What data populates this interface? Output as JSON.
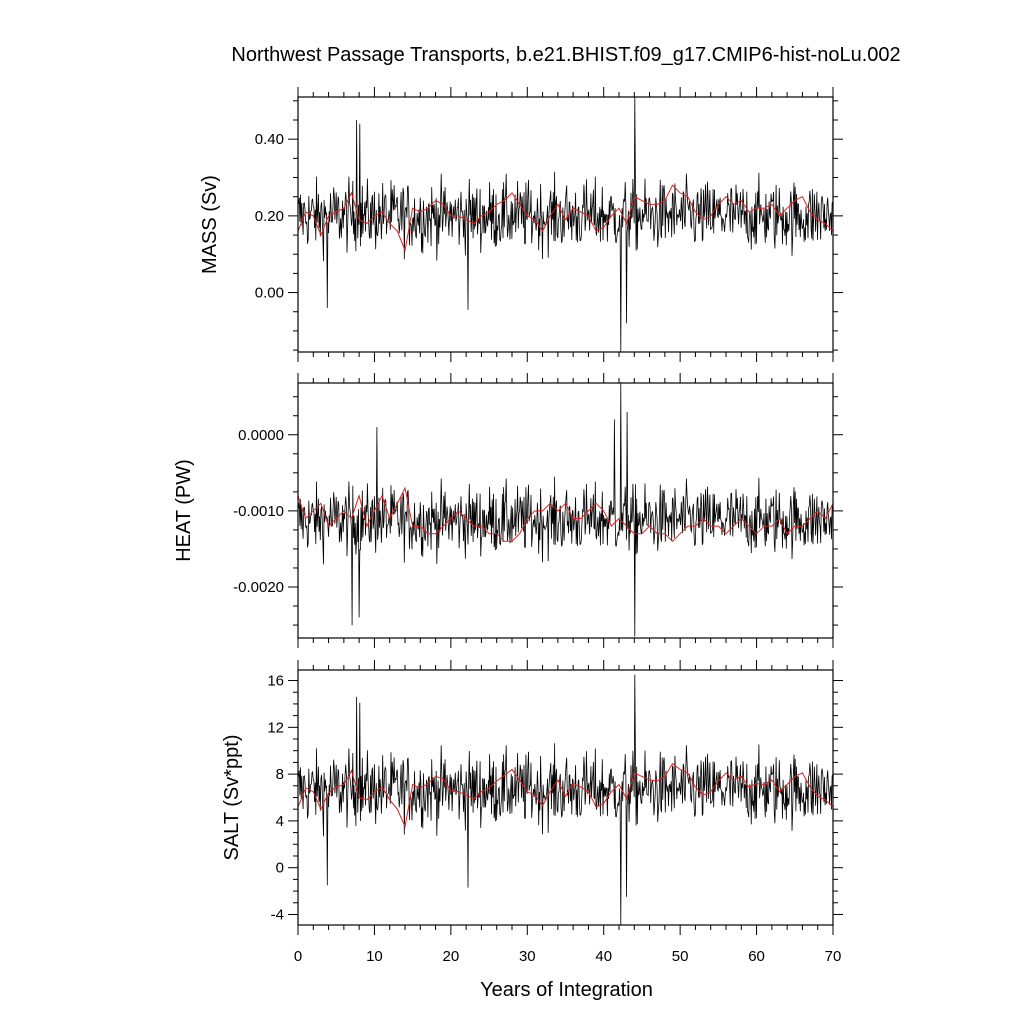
{
  "chart_data": {
    "type": "line",
    "title": "Northwest Passage Transports, b.e21.BHIST.f09_g17.CMIP6-hist-noLu.002",
    "xlabel": "Years of Integration",
    "xlim": [
      0,
      70
    ],
    "x_ticks": [
      0,
      10,
      20,
      30,
      40,
      50,
      60,
      70
    ],
    "x_tick_labels": [
      "0",
      "10",
      "20",
      "30",
      "40",
      "50",
      "60",
      "70"
    ],
    "x_step": 0.0833,
    "line_colors": {
      "monthly": "#000000",
      "annual": "#e02020"
    },
    "panels": [
      {
        "ylabel": "MASS (Sv)",
        "ylim": [
          -0.155,
          0.51
        ],
        "y_ticks": [
          0.0,
          0.2,
          0.4
        ],
        "y_tick_labels": [
          "0.00",
          "0.20",
          "0.40"
        ],
        "y_minor_step": 0.05,
        "series": [
          {
            "kind": "monthly",
            "mean": 0.2,
            "amp": 0.085,
            "spikes": [
              {
                "x": 7.7,
                "y": 0.45
              },
              {
                "x": 8.1,
                "y": 0.44
              },
              {
                "x": 44.1,
                "y": 0.51
              },
              {
                "x": 42.2,
                "y": -0.155
              },
              {
                "x": 43.0,
                "y": -0.08
              },
              {
                "x": 3.8,
                "y": -0.04
              },
              {
                "x": 22.2,
                "y": -0.045
              }
            ]
          },
          {
            "kind": "annual",
            "values": [
              0.16,
              0.21,
              0.2,
              0.15,
              0.2,
              0.21,
              0.22,
              0.26,
              0.19,
              0.18,
              0.2,
              0.21,
              0.18,
              0.16,
              0.11,
              0.22,
              0.21,
              0.22,
              0.24,
              0.23,
              0.2,
              0.2,
              0.19,
              0.18,
              0.2,
              0.21,
              0.23,
              0.24,
              0.26,
              0.23,
              0.2,
              0.19,
              0.16,
              0.2,
              0.23,
              0.19,
              0.22,
              0.21,
              0.2,
              0.16,
              0.17,
              0.2,
              0.22,
              0.18,
              0.25,
              0.24,
              0.23,
              0.23,
              0.24,
              0.28,
              0.26,
              0.25,
              0.21,
              0.19,
              0.2,
              0.23,
              0.25,
              0.23,
              0.24,
              0.21,
              0.22,
              0.22,
              0.23,
              0.2,
              0.22,
              0.24,
              0.25,
              0.21,
              0.19,
              0.18,
              0.16
            ]
          }
        ]
      },
      {
        "ylabel": "HEAT (PW)",
        "ylim": [
          -0.00267,
          0.00068
        ],
        "y_ticks": [
          -0.002,
          -0.001,
          0.0
        ],
        "y_tick_labels": [
          "-0.0020",
          "-0.0010",
          "0.0000"
        ],
        "y_minor_step": 0.00025,
        "series": [
          {
            "kind": "monthly",
            "mean": -0.00112,
            "amp": 0.00042,
            "spikes": [
              {
                "x": 7.1,
                "y": -0.0025
              },
              {
                "x": 8.0,
                "y": -0.0024
              },
              {
                "x": 44.1,
                "y": -0.00265
              },
              {
                "x": 42.2,
                "y": 0.00068
              },
              {
                "x": 41.4,
                "y": 0.0002
              },
              {
                "x": 43.1,
                "y": 0.0003
              },
              {
                "x": 10.3,
                "y": 0.0001
              }
            ]
          },
          {
            "kind": "annual",
            "values": [
              -0.0008,
              -0.0011,
              -0.001,
              -0.0009,
              -0.0012,
              -0.0011,
              -0.001,
              -0.0011,
              -0.0008,
              -0.0012,
              -0.001,
              -0.0008,
              -0.0011,
              -0.0009,
              -0.0007,
              -0.0012,
              -0.0012,
              -0.0013,
              -0.0013,
              -0.0012,
              -0.0011,
              -0.001,
              -0.0011,
              -0.0012,
              -0.0012,
              -0.0013,
              -0.0013,
              -0.0014,
              -0.0014,
              -0.0013,
              -0.0011,
              -0.001,
              -0.001,
              -0.0009,
              -0.001,
              -0.0009,
              -0.0011,
              -0.0011,
              -0.001,
              -0.0009,
              -0.001,
              -0.0012,
              -0.0011,
              -0.0012,
              -0.0013,
              -0.0013,
              -0.0012,
              -0.0013,
              -0.0013,
              -0.0014,
              -0.0013,
              -0.0012,
              -0.0012,
              -0.0011,
              -0.0012,
              -0.0012,
              -0.0013,
              -0.0012,
              -0.0011,
              -0.0012,
              -0.0013,
              -0.0012,
              -0.0012,
              -0.0011,
              -0.0013,
              -0.0012,
              -0.0012,
              -0.0011,
              -0.001,
              -0.0011,
              -0.0009
            ]
          }
        ]
      },
      {
        "ylabel": "SALT (Sv*ppt)",
        "ylim": [
          -4.9,
          16.9
        ],
        "y_ticks": [
          -4,
          0,
          4,
          8,
          12,
          16
        ],
        "y_tick_labels": [
          "-4",
          "0",
          "4",
          "8",
          "12",
          "16"
        ],
        "y_minor_step": 1,
        "series": [
          {
            "kind": "monthly",
            "mean": 6.7,
            "amp": 2.9,
            "spikes": [
              {
                "x": 7.7,
                "y": 14.6
              },
              {
                "x": 8.1,
                "y": 14.1
              },
              {
                "x": 44.1,
                "y": 16.5
              },
              {
                "x": 42.2,
                "y": -4.9
              },
              {
                "x": 43.0,
                "y": -2.5
              },
              {
                "x": 3.8,
                "y": -1.5
              },
              {
                "x": 22.2,
                "y": -1.7
              }
            ]
          },
          {
            "kind": "annual",
            "values": [
              5.2,
              6.8,
              6.5,
              5.0,
              6.4,
              6.9,
              7.1,
              8.3,
              6.0,
              5.8,
              6.5,
              6.9,
              5.8,
              5.0,
              3.5,
              7.1,
              6.8,
              7.2,
              7.8,
              7.6,
              6.6,
              6.5,
              6.2,
              5.9,
              6.5,
              6.8,
              7.4,
              7.9,
              8.4,
              7.5,
              6.5,
              6.2,
              5.3,
              6.5,
              7.5,
              6.1,
              7.2,
              6.9,
              6.5,
              5.2,
              5.5,
              6.5,
              7.1,
              5.9,
              8.1,
              7.8,
              7.5,
              7.4,
              7.8,
              8.9,
              8.4,
              8.1,
              6.9,
              6.2,
              6.5,
              7.4,
              8.1,
              7.5,
              7.8,
              6.9,
              7.2,
              7.1,
              7.5,
              6.5,
              7.1,
              7.8,
              8.1,
              6.9,
              6.1,
              5.8,
              5.2
            ]
          }
        ]
      }
    ]
  }
}
